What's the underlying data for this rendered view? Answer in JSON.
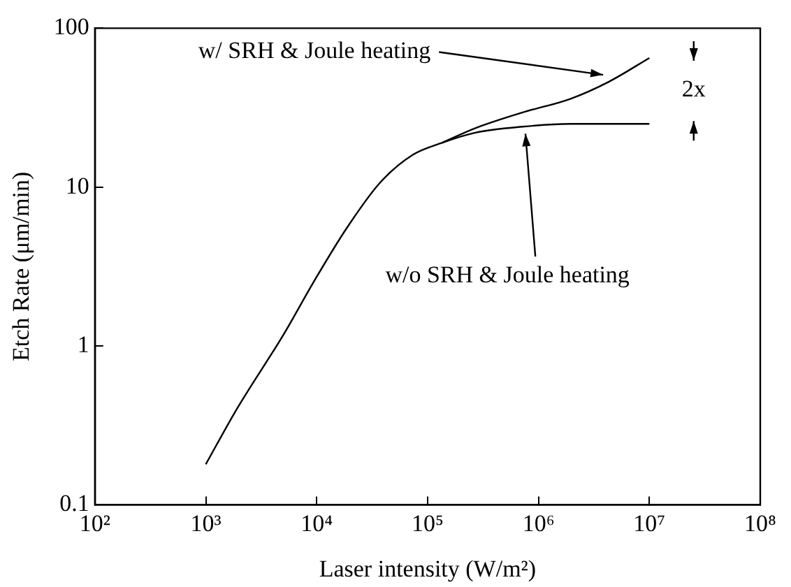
{
  "chart_data": {
    "type": "line",
    "xlabel": "Laser intensity (W/m²)",
    "ylabel": "Etch Rate (μm/min)",
    "log": "xy",
    "grid": false,
    "legend": false,
    "marker": "none",
    "line_style": "solid",
    "xlim": [
      100,
      100000000
    ],
    "xticks": [
      {
        "value": 100,
        "label": "10²"
      },
      {
        "value": 1000,
        "label": "10³"
      },
      {
        "value": 10000,
        "label": "10⁴"
      },
      {
        "value": 100000,
        "label": "10⁵"
      },
      {
        "value": 1000000,
        "label": "10⁶"
      },
      {
        "value": 10000000,
        "label": "10⁷"
      },
      {
        "value": 100000000,
        "label": "10⁸"
      }
    ],
    "ylim": [
      0.1,
      100
    ],
    "yticks": [
      0.1,
      1,
      10,
      100
    ],
    "series": [
      {
        "color": "#000000",
        "x": [
          1000,
          1900,
          5100,
          9300,
          18600,
          37000,
          74000,
          135000,
          270000,
          720000,
          1950000,
          10000000
        ],
        "values": [
          0.18,
          0.4,
          1.2,
          2.5,
          5.5,
          10.6,
          16,
          19,
          22,
          24,
          25,
          25
        ]
      },
      {
        "color": "#000000",
        "x": [
          135000,
          270000,
          720000,
          1950000,
          4300000,
          10000000
        ],
        "values": [
          19,
          23.5,
          29.5,
          36,
          46,
          65
        ]
      }
    ],
    "annotations": [
      {
        "text": "w/ SRH & Joule heating",
        "x": 4300000,
        "y": 46
      },
      {
        "text": "w/o SRH & Joule heating",
        "x": 720000,
        "y": 24
      },
      "2x"
    ]
  }
}
